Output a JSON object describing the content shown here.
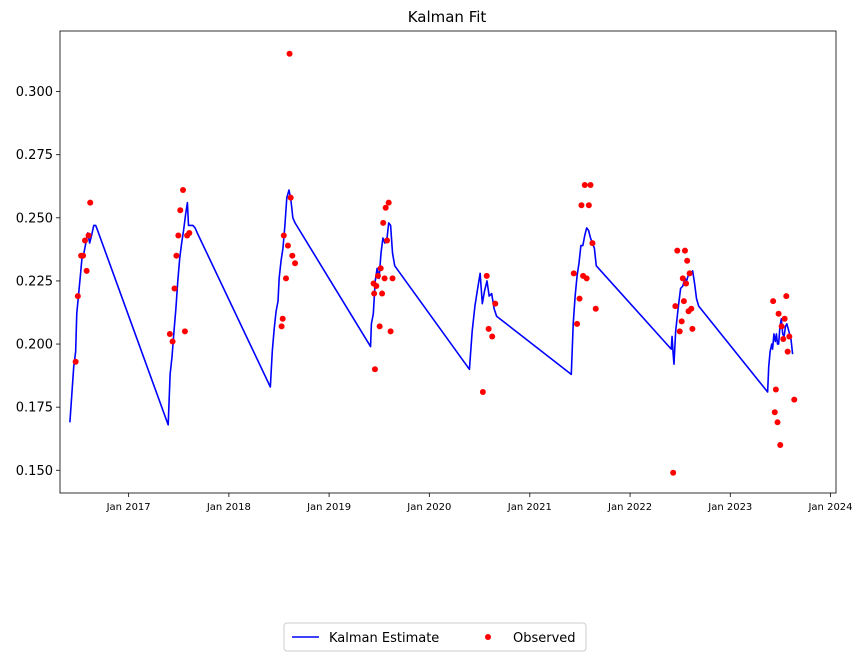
{
  "chart_data": {
    "type": "line",
    "title": "Kalman Fit",
    "xlabel": "",
    "ylabel": "",
    "x_ticks": [
      "2017-01-01",
      "2018-01-01",
      "2019-01-01",
      "2020-01-01",
      "2021-01-01",
      "2022-01-01",
      "2023-01-01",
      "2024-01-01"
    ],
    "x_tick_labels": [
      "Jan 2017",
      "Jan 2018",
      "Jan 2019",
      "Jan 2020",
      "Jan 2021",
      "Jan 2022",
      "Jan 2023",
      "Jan 2024"
    ],
    "xlim": [
      "2016-04-26",
      "2024-01-21"
    ],
    "y_ticks": [
      0.15,
      0.175,
      0.2,
      0.225,
      0.25,
      0.275,
      0.3
    ],
    "y_tick_labels": [
      "0.150",
      "0.175",
      "0.200",
      "0.225",
      "0.250",
      "0.275",
      "0.300"
    ],
    "ylim": [
      0.141,
      0.324
    ],
    "grid": false,
    "legend": {
      "position": "bottom-center-outside"
    },
    "series": [
      {
        "name": "Kalman Estimate",
        "kind": "line",
        "color": "#0000ff",
        "points": [
          [
            "2016-06-01",
            0.169
          ],
          [
            "2016-06-08",
            0.18
          ],
          [
            "2016-06-15",
            0.191
          ],
          [
            "2016-06-22",
            0.197
          ],
          [
            "2016-06-26",
            0.212
          ],
          [
            "2016-07-03",
            0.22
          ],
          [
            "2016-07-10",
            0.228
          ],
          [
            "2016-07-15",
            0.234
          ],
          [
            "2016-07-22",
            0.236
          ],
          [
            "2016-07-29",
            0.24
          ],
          [
            "2016-08-05",
            0.244
          ],
          [
            "2016-08-12",
            0.24
          ],
          [
            "2016-08-19",
            0.243
          ],
          [
            "2016-08-27",
            0.247
          ],
          [
            "2016-09-03",
            0.247
          ],
          [
            "2016-09-10",
            0.245
          ],
          [
            "2017-05-25",
            0.168
          ],
          [
            "2017-06-01",
            0.188
          ],
          [
            "2017-06-08",
            0.195
          ],
          [
            "2017-06-15",
            0.205
          ],
          [
            "2017-06-22",
            0.214
          ],
          [
            "2017-06-29",
            0.225
          ],
          [
            "2017-07-06",
            0.234
          ],
          [
            "2017-07-13",
            0.24
          ],
          [
            "2017-07-20",
            0.245
          ],
          [
            "2017-07-27",
            0.251
          ],
          [
            "2017-08-03",
            0.256
          ],
          [
            "2017-08-07",
            0.247
          ],
          [
            "2017-08-14",
            0.247
          ],
          [
            "2017-08-23",
            0.247
          ],
          [
            "2017-08-31",
            0.246
          ],
          [
            "2017-09-08",
            0.244
          ],
          [
            "2018-06-01",
            0.183
          ],
          [
            "2018-06-08",
            0.197
          ],
          [
            "2018-06-15",
            0.206
          ],
          [
            "2018-06-22",
            0.213
          ],
          [
            "2018-06-29",
            0.217
          ],
          [
            "2018-07-03",
            0.226
          ],
          [
            "2018-07-10",
            0.233
          ],
          [
            "2018-07-17",
            0.238
          ],
          [
            "2018-07-24",
            0.247
          ],
          [
            "2018-07-31",
            0.258
          ],
          [
            "2018-08-08",
            0.261
          ],
          [
            "2018-08-15",
            0.257
          ],
          [
            "2018-08-22",
            0.25
          ],
          [
            "2018-08-30",
            0.248
          ],
          [
            "2019-06-01",
            0.199
          ],
          [
            "2019-06-04",
            0.208
          ],
          [
            "2019-06-11",
            0.212
          ],
          [
            "2019-06-18",
            0.225
          ],
          [
            "2019-06-25",
            0.23
          ],
          [
            "2019-07-02",
            0.226
          ],
          [
            "2019-07-09",
            0.236
          ],
          [
            "2019-07-16",
            0.242
          ],
          [
            "2019-07-23",
            0.24
          ],
          [
            "2019-07-30",
            0.241
          ],
          [
            "2019-08-06",
            0.248
          ],
          [
            "2019-08-13",
            0.247
          ],
          [
            "2019-08-20",
            0.236
          ],
          [
            "2019-08-28",
            0.231
          ],
          [
            "2020-05-26",
            0.19
          ],
          [
            "2020-06-05",
            0.205
          ],
          [
            "2020-06-15",
            0.215
          ],
          [
            "2020-06-25",
            0.222
          ],
          [
            "2020-07-04",
            0.228
          ],
          [
            "2020-07-12",
            0.216
          ],
          [
            "2020-07-20",
            0.221
          ],
          [
            "2020-07-29",
            0.225
          ],
          [
            "2020-08-06",
            0.219
          ],
          [
            "2020-08-15",
            0.22
          ],
          [
            "2020-08-24",
            0.214
          ],
          [
            "2020-09-02",
            0.211
          ],
          [
            "2021-06-01",
            0.188
          ],
          [
            "2021-06-08",
            0.208
          ],
          [
            "2021-06-15",
            0.219
          ],
          [
            "2021-06-22",
            0.227
          ],
          [
            "2021-06-29",
            0.232
          ],
          [
            "2021-07-06",
            0.239
          ],
          [
            "2021-07-13",
            0.239
          ],
          [
            "2021-07-20",
            0.243
          ],
          [
            "2021-07-27",
            0.246
          ],
          [
            "2021-08-03",
            0.245
          ],
          [
            "2021-08-10",
            0.242
          ],
          [
            "2021-08-17",
            0.24
          ],
          [
            "2021-08-24",
            0.238
          ],
          [
            "2021-08-31",
            0.231
          ],
          [
            "2022-05-31",
            0.198
          ],
          [
            "2022-06-03",
            0.203
          ],
          [
            "2022-06-07",
            0.196
          ],
          [
            "2022-06-10",
            0.192
          ],
          [
            "2022-06-16",
            0.205
          ],
          [
            "2022-06-25",
            0.214
          ],
          [
            "2022-07-04",
            0.222
          ],
          [
            "2022-07-12",
            0.223
          ],
          [
            "2022-07-20",
            0.226
          ],
          [
            "2022-07-26",
            0.225
          ],
          [
            "2022-08-03",
            0.228
          ],
          [
            "2022-08-10",
            0.228
          ],
          [
            "2022-08-17",
            0.229
          ],
          [
            "2022-08-24",
            0.224
          ],
          [
            "2022-08-31",
            0.218
          ],
          [
            "2022-09-08",
            0.215
          ],
          [
            "2023-05-17",
            0.181
          ],
          [
            "2023-05-21",
            0.191
          ],
          [
            "2023-05-26",
            0.197
          ],
          [
            "2023-06-01",
            0.2
          ],
          [
            "2023-06-04",
            0.198
          ],
          [
            "2023-06-09",
            0.204
          ],
          [
            "2023-06-14",
            0.201
          ],
          [
            "2023-06-18",
            0.204
          ],
          [
            "2023-06-22",
            0.2
          ],
          [
            "2023-06-26",
            0.2
          ],
          [
            "2023-07-01",
            0.207
          ],
          [
            "2023-07-06",
            0.21
          ],
          [
            "2023-07-11",
            0.204
          ],
          [
            "2023-07-16",
            0.203
          ],
          [
            "2023-07-21",
            0.207
          ],
          [
            "2023-07-26",
            0.208
          ],
          [
            "2023-07-31",
            0.206
          ],
          [
            "2023-08-05",
            0.204
          ],
          [
            "2023-08-10",
            0.202
          ],
          [
            "2023-08-16",
            0.196
          ]
        ]
      },
      {
        "name": "Observed",
        "kind": "scatter",
        "color": "#ff0000",
        "points": [
          [
            "2016-06-22",
            0.193
          ],
          [
            "2016-06-30",
            0.219
          ],
          [
            "2016-07-12",
            0.235
          ],
          [
            "2016-07-19",
            0.235
          ],
          [
            "2016-07-26",
            0.241
          ],
          [
            "2016-08-01",
            0.229
          ],
          [
            "2016-08-08",
            0.243
          ],
          [
            "2016-08-14",
            0.256
          ],
          [
            "2017-05-31",
            0.204
          ],
          [
            "2017-06-10",
            0.201
          ],
          [
            "2017-06-17",
            0.222
          ],
          [
            "2017-06-24",
            0.235
          ],
          [
            "2017-07-01",
            0.243
          ],
          [
            "2017-07-08",
            0.253
          ],
          [
            "2017-07-18",
            0.261
          ],
          [
            "2017-07-25",
            0.205
          ],
          [
            "2017-08-02",
            0.243
          ],
          [
            "2017-08-10",
            0.244
          ],
          [
            "2018-07-12",
            0.207
          ],
          [
            "2018-07-16",
            0.21
          ],
          [
            "2018-07-20",
            0.243
          ],
          [
            "2018-07-28",
            0.226
          ],
          [
            "2018-08-04",
            0.239
          ],
          [
            "2018-08-10",
            0.315
          ],
          [
            "2018-08-14",
            0.258
          ],
          [
            "2018-08-20",
            0.235
          ],
          [
            "2018-08-30",
            0.232
          ],
          [
            "2019-06-12",
            0.224
          ],
          [
            "2019-06-14",
            0.22
          ],
          [
            "2019-06-17",
            0.19
          ],
          [
            "2019-06-22",
            0.223
          ],
          [
            "2019-06-28",
            0.227
          ],
          [
            "2019-07-04",
            0.207
          ],
          [
            "2019-07-08",
            0.23
          ],
          [
            "2019-07-13",
            0.22
          ],
          [
            "2019-07-17",
            0.248
          ],
          [
            "2019-07-22",
            0.226
          ],
          [
            "2019-07-26",
            0.254
          ],
          [
            "2019-07-31",
            0.241
          ],
          [
            "2019-08-06",
            0.256
          ],
          [
            "2019-08-13",
            0.205
          ],
          [
            "2019-08-20",
            0.226
          ],
          [
            "2020-07-14",
            0.181
          ],
          [
            "2020-07-28",
            0.227
          ],
          [
            "2020-08-04",
            0.206
          ],
          [
            "2020-08-17",
            0.203
          ],
          [
            "2020-08-28",
            0.216
          ],
          [
            "2021-06-10",
            0.228
          ],
          [
            "2021-06-22",
            0.208
          ],
          [
            "2021-07-01",
            0.218
          ],
          [
            "2021-07-08",
            0.255
          ],
          [
            "2021-07-14",
            0.227
          ],
          [
            "2021-07-20",
            0.263
          ],
          [
            "2021-07-27",
            0.226
          ],
          [
            "2021-08-04",
            0.255
          ],
          [
            "2021-08-10",
            0.263
          ],
          [
            "2021-08-17",
            0.24
          ],
          [
            "2021-08-29",
            0.214
          ],
          [
            "2022-06-07",
            0.149
          ],
          [
            "2022-06-15",
            0.215
          ],
          [
            "2022-06-22",
            0.237
          ],
          [
            "2022-07-01",
            0.205
          ],
          [
            "2022-07-08",
            0.209
          ],
          [
            "2022-07-12",
            0.226
          ],
          [
            "2022-07-16",
            0.217
          ],
          [
            "2022-07-20",
            0.237
          ],
          [
            "2022-07-24",
            0.224
          ],
          [
            "2022-07-28",
            0.233
          ],
          [
            "2022-08-02",
            0.213
          ],
          [
            "2022-08-06",
            0.228
          ],
          [
            "2022-08-12",
            0.214
          ],
          [
            "2022-08-16",
            0.206
          ],
          [
            "2023-06-06",
            0.217
          ],
          [
            "2023-06-12",
            0.173
          ],
          [
            "2023-06-16",
            0.182
          ],
          [
            "2023-06-22",
            0.169
          ],
          [
            "2023-06-26",
            0.212
          ],
          [
            "2023-07-02",
            0.16
          ],
          [
            "2023-07-07",
            0.207
          ],
          [
            "2023-07-13",
            0.202
          ],
          [
            "2023-07-18",
            0.21
          ],
          [
            "2023-07-24",
            0.219
          ],
          [
            "2023-07-29",
            0.197
          ],
          [
            "2023-08-04",
            0.203
          ],
          [
            "2023-08-22",
            0.178
          ]
        ]
      }
    ]
  }
}
